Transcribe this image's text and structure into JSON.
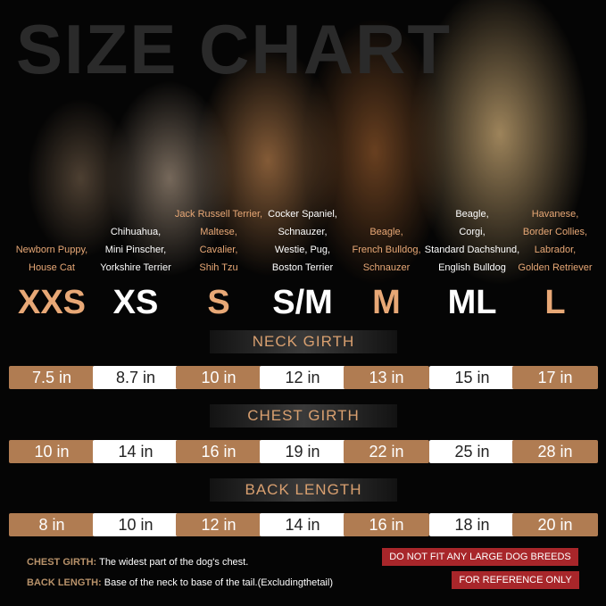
{
  "title": "SIZE CHART",
  "colors": {
    "accent": "#b07c52",
    "warning": "#a8262a",
    "highlight_text": "#e8a876"
  },
  "sizes": [
    {
      "label": "XXS",
      "breeds": [
        "Newborn Puppy,",
        "House Cat"
      ],
      "neck": "7.5 in",
      "chest": "10 in",
      "back": "8 in"
    },
    {
      "label": "XS",
      "breeds": [
        "Chihuahua,",
        "Mini Pinscher,",
        "Yorkshire Terrier"
      ],
      "neck": "8.7 in",
      "chest": "14 in",
      "back": "10 in"
    },
    {
      "label": "S",
      "breeds": [
        "Jack Russell Terrier,",
        "Maltese,",
        "Cavalier,",
        "Shih Tzu"
      ],
      "neck": "10 in",
      "chest": "16 in",
      "back": "12 in"
    },
    {
      "label": "S/M",
      "breeds": [
        "Cocker Spaniel,",
        "Schnauzer,",
        "Westie, Pug,",
        "Boston Terrier"
      ],
      "neck": "12 in",
      "chest": "19 in",
      "back": "14 in"
    },
    {
      "label": "M",
      "breeds": [
        "Beagle,",
        "French Bulldog,",
        "Schnauzer"
      ],
      "neck": "13 in",
      "chest": "22 in",
      "back": "16 in"
    },
    {
      "label": "ML",
      "breeds": [
        "Beagle,",
        "Corgi,",
        "Standard Dachshund,",
        "English Bulldog"
      ],
      "neck": "15 in",
      "chest": "25 in",
      "back": "18 in"
    },
    {
      "label": "L",
      "breeds": [
        "Havanese,",
        "Border Collies,",
        "Labrador,",
        "Golden Retriever"
      ],
      "neck": "17 in",
      "chest": "28 in",
      "back": "20 in"
    }
  ],
  "headers": {
    "neck": "NECK GIRTH",
    "chest": "CHEST GIRTH",
    "back": "BACK LENGTH"
  },
  "notes": {
    "chest_label": "CHEST GIRTH:",
    "chest_text": "The widest part of the dog's chest.",
    "back_label": "BACK LENGTH:",
    "back_text": "Base of the neck to base of the tail.(Excludingthetail)"
  },
  "warnings": [
    "DO NOT FIT ANY LARGE DOG BREEDS",
    "FOR REFERENCE ONLY"
  ]
}
